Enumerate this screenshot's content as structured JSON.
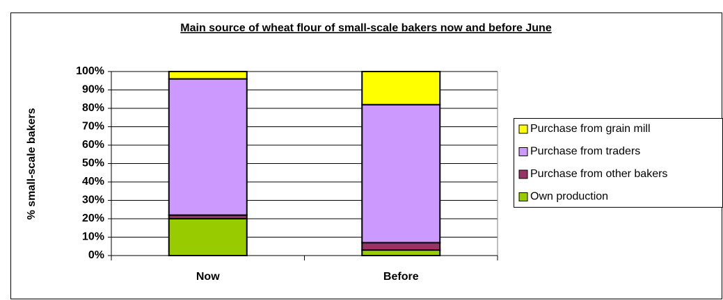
{
  "chart_data": {
    "type": "stacked_bar",
    "title": "Main source of wheat flour of small-scale bakers now and before June",
    "y_label": "% small-scale bakers",
    "categories": [
      "Now",
      "Before"
    ],
    "series": [
      {
        "name": "Own production",
        "color": "#99cc00",
        "values": [
          20,
          3
        ]
      },
      {
        "name": "Purchase from other bakers",
        "color": "#993366",
        "values": [
          2,
          4
        ]
      },
      {
        "name": "Purchase from traders",
        "color": "#cc99ff",
        "values": [
          74,
          75
        ]
      },
      {
        "name": "Purchase from grain mill",
        "color": "#ffff00",
        "values": [
          4,
          18
        ]
      }
    ],
    "ylim": [
      0,
      100
    ],
    "yticks": [
      {
        "value": 0,
        "label": "0%"
      },
      {
        "value": 10,
        "label": "10%"
      },
      {
        "value": 20,
        "label": "20%"
      },
      {
        "value": 30,
        "label": "30%"
      },
      {
        "value": 40,
        "label": "40%"
      },
      {
        "value": 50,
        "label": "50%"
      },
      {
        "value": 60,
        "label": "60%"
      },
      {
        "value": 70,
        "label": "70%"
      },
      {
        "value": 80,
        "label": "80%"
      },
      {
        "value": 90,
        "label": "90%"
      },
      {
        "value": 100,
        "label": "100%"
      }
    ],
    "grid": true,
    "legend": "right"
  }
}
